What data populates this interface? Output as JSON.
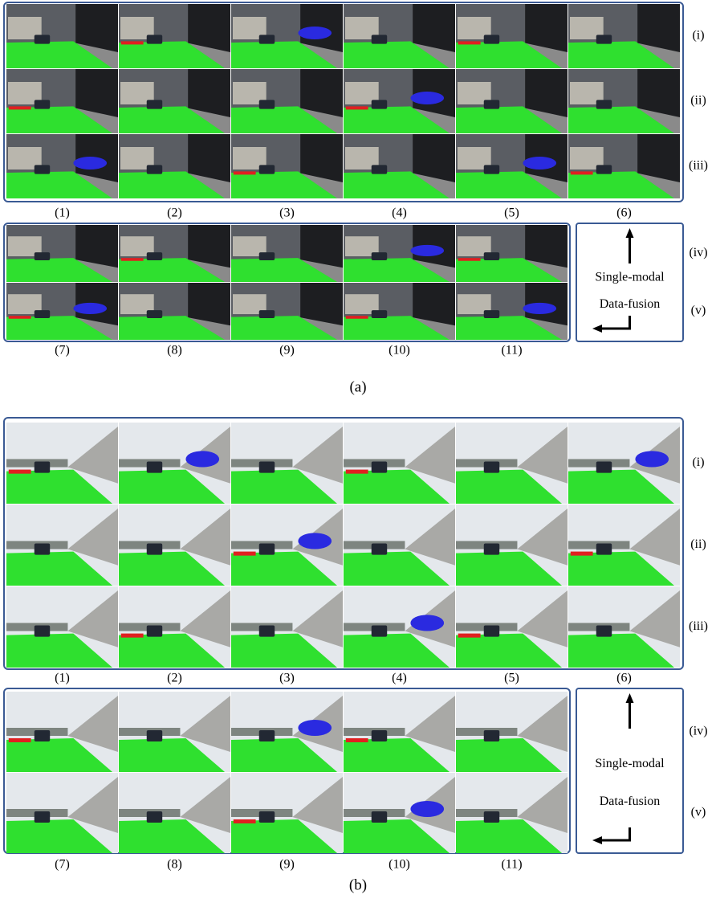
{
  "figure": {
    "panels": [
      {
        "caption": "(a)",
        "top_rows": [
          "(i)",
          "(ii)",
          "(iii)"
        ],
        "top_columns": [
          "(1)",
          "(2)",
          "(3)",
          "(4)",
          "(5)",
          "(6)"
        ],
        "bottom_rows": [
          "(iv)",
          "(v)"
        ],
        "bottom_columns": [
          "(7)",
          "(8)",
          "(9)",
          "(10)",
          "(11)"
        ],
        "legend": [
          "Single-modal",
          "Data-fusion"
        ]
      },
      {
        "caption": "(b)",
        "top_rows": [
          "(i)",
          "(ii)",
          "(iii)"
        ],
        "top_columns": [
          "(1)",
          "(2)",
          "(3)",
          "(4)",
          "(5)",
          "(6)"
        ],
        "bottom_rows": [
          "(iv)",
          "(v)"
        ],
        "bottom_columns": [
          "(7)",
          "(8)",
          "(9)",
          "(10)",
          "(11)"
        ],
        "legend": [
          "Single-modal",
          "Data-fusion"
        ]
      }
    ]
  }
}
